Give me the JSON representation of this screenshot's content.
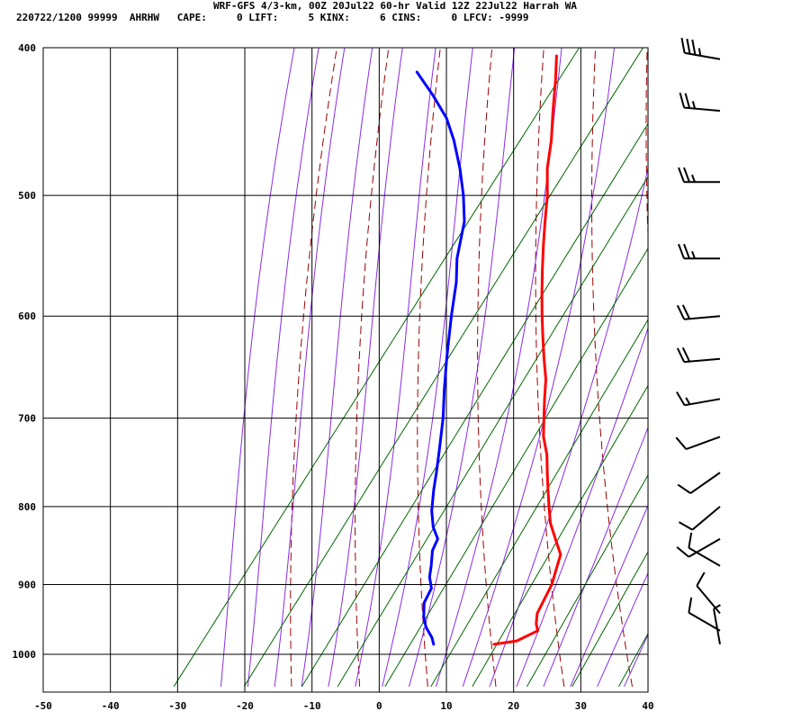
{
  "header": {
    "title": "WRF-GFS 4/3-km, 00Z 20Jul22 60-hr Valid 12Z 22Jul22 Harrah WA",
    "subtitle": "220722/1200 99999  AHRHW   CAPE:     0 LIFT:     5 KINX:     6 CINS:     0 LFCV: -9999"
  },
  "colors": {
    "temperature": "#ff0000",
    "dewpoint": "#0000ff",
    "dry_adiabat": "#990000",
    "moist_adiabat": "#8a2be2",
    "mixing_ratio": "#006600",
    "grid": "#000000",
    "wind_barb": "#000000"
  },
  "chart_data": {
    "type": "skew-t sounding",
    "x_ticks": [
      -50,
      -40,
      -30,
      -20,
      -10,
      0,
      10,
      20,
      30,
      40
    ],
    "y_ticks": [
      400,
      500,
      600,
      700,
      800,
      900,
      1000
    ],
    "xlim": [
      -50,
      40
    ],
    "ylim": [
      1050,
      400
    ],
    "y_scale": "log",
    "grid": true,
    "temperature": [
      {
        "p": 985,
        "t": 16
      },
      {
        "p": 980,
        "t": 19
      },
      {
        "p": 965,
        "t": 21
      },
      {
        "p": 955,
        "t": 20
      },
      {
        "p": 940,
        "t": 19
      },
      {
        "p": 920,
        "t": 18.5
      },
      {
        "p": 900,
        "t": 18
      },
      {
        "p": 880,
        "t": 17
      },
      {
        "p": 860,
        "t": 16
      },
      {
        "p": 840,
        "t": 13.5
      },
      {
        "p": 820,
        "t": 11
      },
      {
        "p": 800,
        "t": 9
      },
      {
        "p": 780,
        "t": 7
      },
      {
        "p": 760,
        "t": 5
      },
      {
        "p": 740,
        "t": 3
      },
      {
        "p": 720,
        "t": 0.5
      },
      {
        "p": 700,
        "t": -1.5
      },
      {
        "p": 680,
        "t": -3.5
      },
      {
        "p": 660,
        "t": -5.5
      },
      {
        "p": 640,
        "t": -8
      },
      {
        "p": 620,
        "t": -10.5
      },
      {
        "p": 600,
        "t": -13
      },
      {
        "p": 580,
        "t": -15.5
      },
      {
        "p": 560,
        "t": -18
      },
      {
        "p": 540,
        "t": -20.5
      },
      {
        "p": 520,
        "t": -23
      },
      {
        "p": 500,
        "t": -25.5
      },
      {
        "p": 480,
        "t": -28.5
      },
      {
        "p": 460,
        "t": -31
      },
      {
        "p": 440,
        "t": -34
      },
      {
        "p": 420,
        "t": -37
      },
      {
        "p": 405,
        "t": -39.5
      }
    ],
    "dewpoint": [
      {
        "p": 985,
        "t": 7
      },
      {
        "p": 975,
        "t": 6
      },
      {
        "p": 960,
        "t": 4
      },
      {
        "p": 945,
        "t": 2.5
      },
      {
        "p": 925,
        "t": 1
      },
      {
        "p": 905,
        "t": 0.5
      },
      {
        "p": 890,
        "t": -1
      },
      {
        "p": 875,
        "t": -2
      },
      {
        "p": 855,
        "t": -3.5
      },
      {
        "p": 840,
        "t": -4
      },
      {
        "p": 825,
        "t": -6
      },
      {
        "p": 805,
        "t": -8
      },
      {
        "p": 780,
        "t": -10
      },
      {
        "p": 760,
        "t": -11.5
      },
      {
        "p": 735,
        "t": -13.5
      },
      {
        "p": 700,
        "t": -16.5
      },
      {
        "p": 670,
        "t": -19.5
      },
      {
        "p": 640,
        "t": -22.5
      },
      {
        "p": 600,
        "t": -26.5
      },
      {
        "p": 570,
        "t": -29.5
      },
      {
        "p": 550,
        "t": -32
      },
      {
        "p": 520,
        "t": -35
      },
      {
        "p": 500,
        "t": -38
      },
      {
        "p": 480,
        "t": -41.5
      },
      {
        "p": 460,
        "t": -45.5
      },
      {
        "p": 445,
        "t": -49
      },
      {
        "p": 430,
        "t": -53.5
      },
      {
        "p": 415,
        "t": -58.5
      }
    ],
    "wind_barbs": [
      {
        "p": 407,
        "dir": 280,
        "kt": 35
      },
      {
        "p": 440,
        "dir": 275,
        "kt": 25
      },
      {
        "p": 490,
        "dir": 270,
        "kt": 25
      },
      {
        "p": 550,
        "dir": 270,
        "kt": 25
      },
      {
        "p": 600,
        "dir": 265,
        "kt": 20
      },
      {
        "p": 640,
        "dir": 265,
        "kt": 20
      },
      {
        "p": 680,
        "dir": 260,
        "kt": 15
      },
      {
        "p": 720,
        "dir": 250,
        "kt": 10
      },
      {
        "p": 760,
        "dir": 235,
        "kt": 10
      },
      {
        "p": 800,
        "dir": 230,
        "kt": 10
      },
      {
        "p": 840,
        "dir": 240,
        "kt": 10
      },
      {
        "p": 875,
        "dir": 300,
        "kt": 10
      },
      {
        "p": 940,
        "dir": 320,
        "kt": 10
      },
      {
        "p": 965,
        "dir": 300,
        "kt": 10
      },
      {
        "p": 985,
        "dir": 350,
        "kt": 5
      }
    ]
  }
}
